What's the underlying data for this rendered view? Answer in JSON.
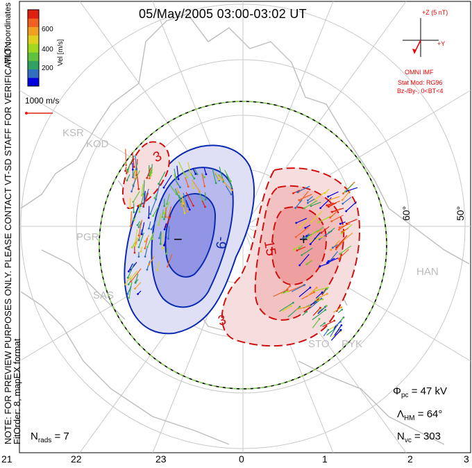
{
  "title": "05/May/2005 03:00-03:02 UT",
  "side_note": {
    "line1": "NOTE: FOR PREVIEW PURPOSES ONLY. PLEASE CONTACT VT-SD STAFF FOR VERIFICATION.",
    "line2": "FitOrder: 8, mapEX format",
    "coords": "MLT coordinates"
  },
  "colorbar": {
    "label": "Vel [m/s]",
    "ticks": [
      "600",
      "400",
      "200"
    ],
    "colors": [
      "#0000e0",
      "#3070c0",
      "#30a060",
      "#60c040",
      "#a0d820",
      "#e0d020",
      "#f0a020",
      "#f06020",
      "#e02010"
    ],
    "scale_label": "1000 m/s"
  },
  "imf": {
    "z_label": "+Z (5 nT)",
    "y_label": "+Y",
    "source": "OMNI IMF",
    "model": "Stat Mod: RG96",
    "model_params": "Bz-/By-, 0<BT<4"
  },
  "stats": {
    "phi_label": "Φ",
    "phi_sub": "pc",
    "phi_value": "= 47 kV",
    "lambda_label": "Λ",
    "lambda_sub": "HM",
    "lambda_value": "= 64°",
    "nvc_label": "N",
    "nvc_sub": "vc",
    "nvc_value": "= 303",
    "nrads_label": "N",
    "nrads_sub": "rads",
    "nrads_value": "= 7"
  },
  "mlt_labels": [
    "21",
    "22",
    "23",
    "0",
    "1",
    "2",
    "3"
  ],
  "lat_labels": [
    "60°",
    "50°"
  ],
  "sites": [
    "KSR",
    "KOD",
    "PGR",
    "SAS",
    "HAN",
    "STO",
    "PYK"
  ],
  "contour_labels": [
    "-3",
    "-9",
    "-15",
    "3",
    "9",
    "15"
  ],
  "extrema": {
    "min_marker": "−",
    "max_marker": "+"
  },
  "chart_data": {
    "type": "contour",
    "title": "05/May/2005 03:00-03:02 UT",
    "coordinate_system": "MLT coordinates",
    "potential_contours_kV": [
      -15,
      -9,
      -3,
      3,
      9,
      15
    ],
    "cross_polar_cap_potential_kV": 47,
    "heppner_maynard_boundary_lat_deg": 64,
    "n_vectors": 303,
    "n_radars": 7,
    "mlt_ticks": [
      21,
      22,
      23,
      0,
      1,
      2,
      3
    ],
    "lat_rings_deg": [
      60,
      50
    ],
    "velocity_scale_m_s": [
      0,
      800
    ]
  }
}
